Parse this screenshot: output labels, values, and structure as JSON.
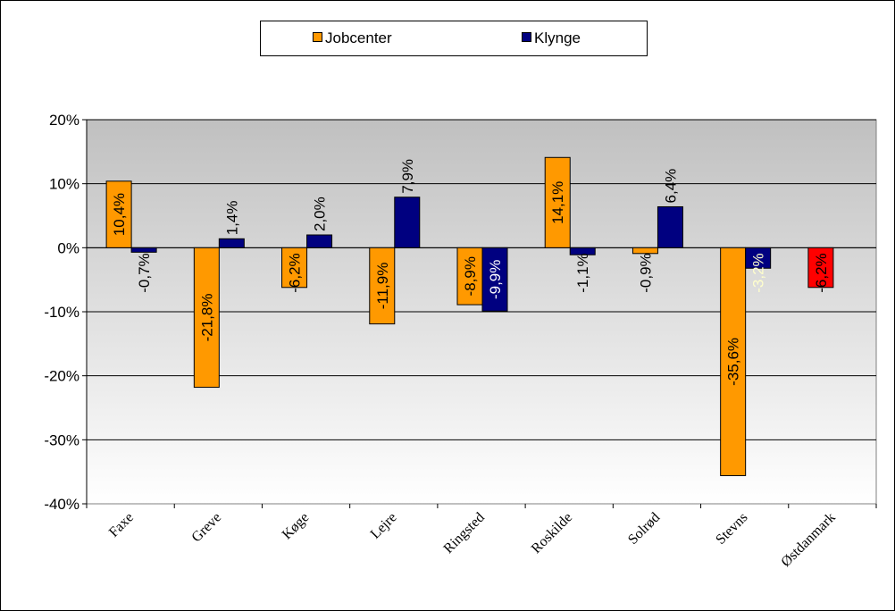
{
  "chart_data": {
    "type": "bar",
    "categories": [
      "Faxe",
      "Greve",
      "Køge",
      "Lejre",
      "Ringsted",
      "Roskilde",
      "Solrød",
      "Stevns",
      "Østdanmark"
    ],
    "series": [
      {
        "name": "Jobcenter",
        "color": "#FF9900",
        "values": [
          10.4,
          -21.8,
          -6.2,
          -11.9,
          -8.9,
          14.1,
          -0.9,
          -35.6,
          -6.2
        ],
        "labels": [
          "10,4%",
          "-21,8%",
          "-6,2%",
          "-11,9%",
          "-8,9%",
          "14,1%",
          "-0,9%",
          "-35,6%",
          "-6,2%"
        ]
      },
      {
        "name": "Klynge",
        "color": "#000080",
        "values": [
          -0.7,
          1.4,
          2.0,
          7.9,
          -9.9,
          -1.1,
          6.4,
          -3.2,
          null
        ],
        "labels": [
          "-0,7%",
          "1,4%",
          "2,0%",
          "7,9%",
          "-9,9%",
          "-1,1%",
          "6,4%",
          "-3,2%",
          null
        ]
      }
    ],
    "point_colors": {
      "Jobcenter": {
        "8": "#FF0000"
      }
    },
    "label_colors": {
      "Klynge": {
        "4": "#FFFFFF",
        "7": "#FFFFCC"
      }
    },
    "ylim": [
      -40,
      20
    ],
    "yticks": [
      20,
      10,
      0,
      -10,
      -20,
      -30,
      -40
    ],
    "ytick_labels": [
      "20%",
      "10%",
      "0%",
      "-10%",
      "-20%",
      "-30%",
      "-40%"
    ],
    "grid": true,
    "legend_position": "top",
    "plot_background": [
      "#C0C0C0",
      "#FFFFFF"
    ],
    "title": "",
    "xlabel": "",
    "ylabel": ""
  },
  "legend": {
    "jobcenter": "Jobcenter",
    "klynge": "Klynge"
  }
}
